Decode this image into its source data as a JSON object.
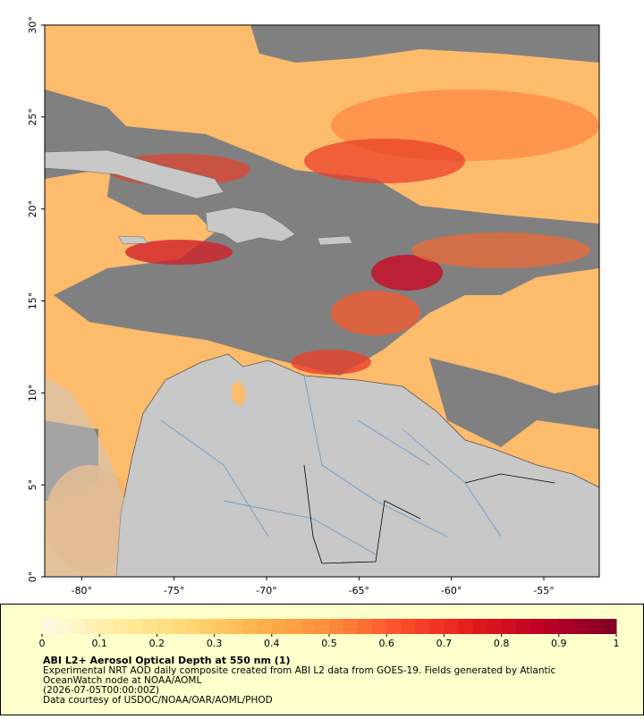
{
  "chart_data": {
    "type": "map",
    "xlim": [
      -82,
      -52
    ],
    "ylim": [
      0,
      30
    ],
    "xticks": [
      {
        "value": -80,
        "label": "-80°"
      },
      {
        "value": -75,
        "label": "-75°"
      },
      {
        "value": -70,
        "label": "-70°"
      },
      {
        "value": -65,
        "label": "-65°"
      },
      {
        "value": -60,
        "label": "-60°"
      },
      {
        "value": -55,
        "label": "-55°"
      }
    ],
    "yticks": [
      {
        "value": 0,
        "label": "0°"
      },
      {
        "value": 5,
        "label": "5°"
      },
      {
        "value": 10,
        "label": "10°"
      },
      {
        "value": 15,
        "label": "15°"
      },
      {
        "value": 20,
        "label": "20°"
      },
      {
        "value": 25,
        "label": "25°"
      },
      {
        "value": 30,
        "label": "30°"
      }
    ],
    "colorbar": {
      "lim": [
        0,
        1
      ],
      "ticks": [
        0,
        0.1,
        0.2,
        0.3,
        0.4,
        0.5,
        0.6,
        0.7,
        0.8,
        0.9,
        1
      ],
      "colors": [
        "#fffbe6",
        "#ffeda0",
        "#fed976",
        "#feb24c",
        "#fd8d3c",
        "#fc4e2a",
        "#e31a1c",
        "#bd0026",
        "#800026"
      ]
    },
    "title": "ABI L2+ Aerosol Optical Depth at 550 nm (1)",
    "description": [
      "Experimental NRT AOD daily composite created from ABI L2 data from GOES-19. Fields generated by Atlantic",
      "OceanWatch node at NOAA/AOML",
      "(2026-07-05T00:00:00Z)",
      "Data courtesy of USDOC/NOAA/OAR/AOML/PHOD"
    ]
  }
}
